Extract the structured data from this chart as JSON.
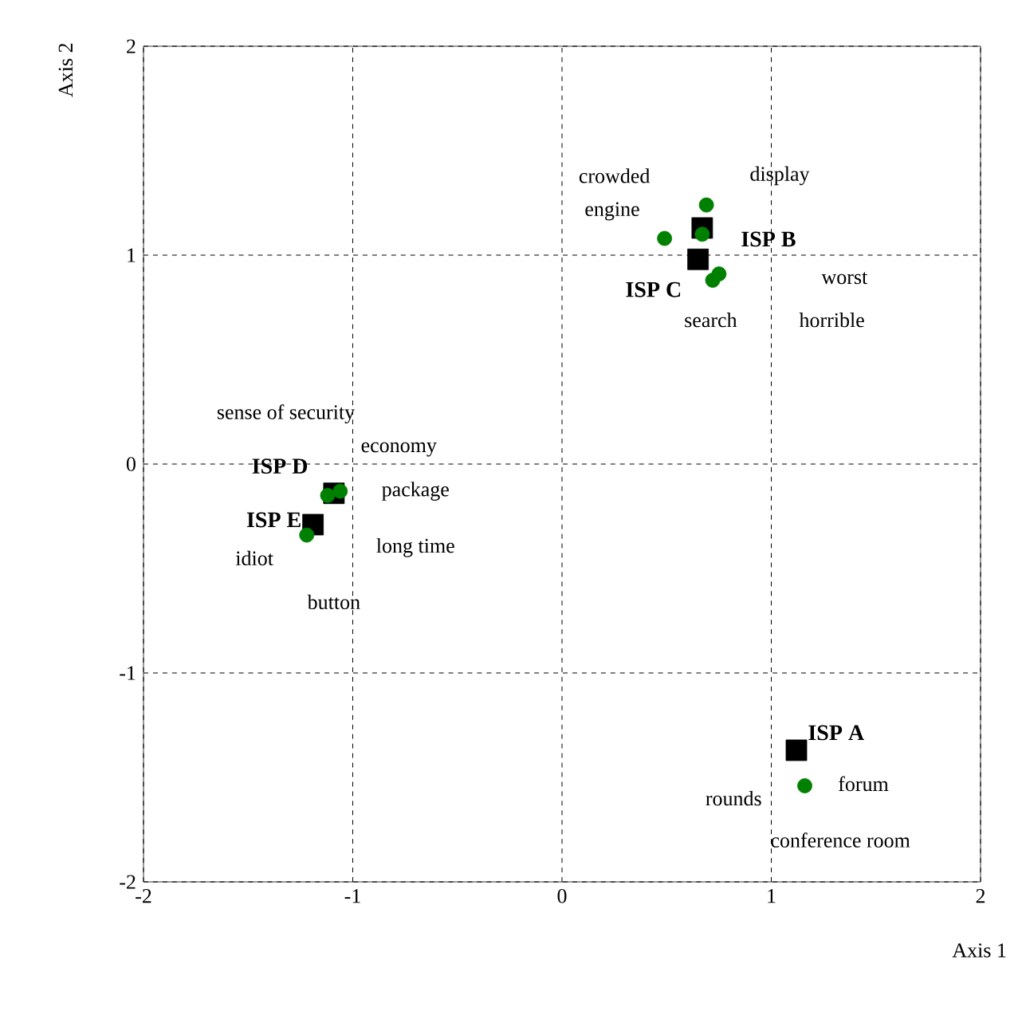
{
  "chart_data": {
    "type": "scatter",
    "xlabel": "Axis 1",
    "ylabel": "Axis 2",
    "xlim": [
      -2,
      2
    ],
    "ylim": [
      -2,
      2
    ],
    "xticks": [
      -2,
      -1,
      0,
      1,
      2
    ],
    "yticks": [
      -2,
      -1,
      0,
      1,
      2
    ],
    "grid": true,
    "series": [
      {
        "color": "#000000",
        "marker": "square",
        "x": [
          1.12,
          0.67,
          0.65,
          -1.09,
          -1.19
        ],
        "values": [
          -1.37,
          1.13,
          0.98,
          -0.14,
          -0.29
        ],
        "value_labels": [
          "ISP A",
          "ISP B",
          "ISP C",
          "ISP D",
          "ISP E"
        ]
      },
      {
        "color": "#008000",
        "marker": "circle",
        "x": [
          0.69,
          0.49,
          0.67,
          0.72,
          0.75,
          -1.12,
          -1.06,
          -1.22,
          1.16
        ],
        "values": [
          1.24,
          1.08,
          1.1,
          0.88,
          0.91,
          -0.15,
          -0.13,
          -0.34,
          -1.54
        ]
      }
    ],
    "annotations": [
      "crowded",
      "display",
      "engine",
      "worst",
      "search",
      "horrible",
      "sense of security",
      "economy",
      "package",
      "idiot",
      "long time",
      "button",
      "forum",
      "rounds",
      "conference room"
    ]
  }
}
